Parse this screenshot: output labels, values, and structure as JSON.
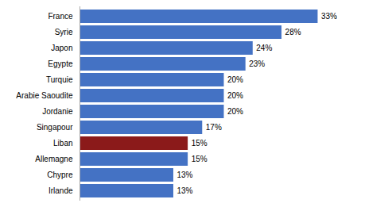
{
  "chart_data": {
    "type": "bar",
    "orientation": "horizontal",
    "categories": [
      "Irlande",
      "Chypre",
      "Allemagne",
      "Liban",
      "Singapour",
      "Jordanie",
      "Arabie Saoudite",
      "Turquie",
      "Egypte",
      "Japon",
      "Syrie",
      "France"
    ],
    "values": [
      13,
      13,
      15,
      15,
      17,
      20,
      20,
      20,
      23,
      24,
      28,
      33
    ],
    "value_labels": [
      "13%",
      "13%",
      "15%",
      "15%",
      "17%",
      "20%",
      "20%",
      "20%",
      "23%",
      "24%",
      "28%",
      "33%"
    ],
    "colors": [
      "#4472C4",
      "#4472C4",
      "#4472C4",
      "#8B1A1A",
      "#4472C4",
      "#4472C4",
      "#4472C4",
      "#4472C4",
      "#4472C4",
      "#4472C4",
      "#4472C4",
      "#4472C4"
    ],
    "xlim": [
      0,
      40
    ],
    "data_labels": true,
    "tick_labels": "y",
    "grid": false
  }
}
